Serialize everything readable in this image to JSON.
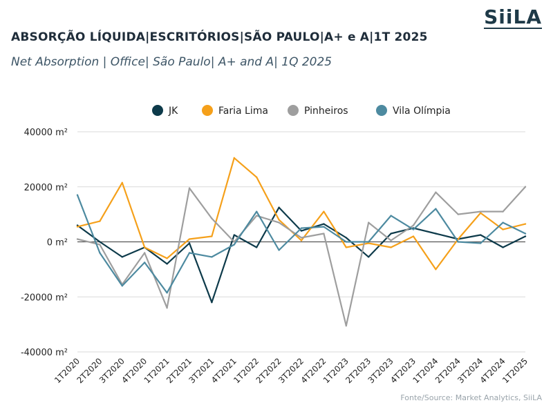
{
  "header": {
    "title": "ABSORÇÃO LÍQUIDA|ESCRITÓRIOS|SÃO PAULO|A+ e A|1T 2025",
    "subtitle": "Net Absorption | Office| São Paulo| A+ and A| 1Q 2025",
    "logo_text": "SiiLA"
  },
  "footer": {
    "source": "Fonte/Source: Market Analytics, SiiLA"
  },
  "chart_data": {
    "type": "line",
    "title": "ABSORÇÃO LÍQUIDA|ESCRITÓRIOS|SÃO PAULO|A+ e A|1T 2025",
    "subtitle": "Net Absorption | Office| São Paulo| A+ and A| 1Q 2025",
    "xlabel": "",
    "ylabel": "",
    "ylim": [
      -40000,
      40000
    ],
    "y_ticks": [
      40000,
      20000,
      0,
      -20000,
      -40000
    ],
    "y_tick_labels": [
      "40000 m²",
      "20000 m²",
      "0 m²",
      "-20000 m²",
      "-40000 m²"
    ],
    "legend_position": "top",
    "grid": "horizontal",
    "categories": [
      "1T2020",
      "2T2020",
      "3T2020",
      "4T2020",
      "1T2021",
      "2T2021",
      "3T2021",
      "4T2021",
      "1T2022",
      "2T2022",
      "3T2022",
      "4T2022",
      "1T2023",
      "2T2023",
      "3T2023",
      "4T2023",
      "1T2024",
      "2T2024",
      "3T2024",
      "4T2024",
      "1T2025"
    ],
    "series": [
      {
        "name": "JK",
        "color": "#0d3a4a",
        "values": [
          6000,
          0,
          -5500,
          -2000,
          -8000,
          -500,
          -22000,
          2500,
          -2000,
          12500,
          4000,
          6500,
          1500,
          -5500,
          3000,
          5000,
          3000,
          1000,
          2500,
          -2000,
          2000
        ]
      },
      {
        "name": "Faria Lima",
        "color": "#f5a01a",
        "values": [
          5500,
          7500,
          21500,
          -2000,
          -6000,
          1000,
          2000,
          30500,
          23500,
          8000,
          500,
          11000,
          -2000,
          -500,
          -2000,
          2000,
          -10000,
          1000,
          10500,
          4500,
          6500
        ]
      },
      {
        "name": "Pinheiros",
        "color": "#9e9e9e",
        "values": [
          1000,
          -1000,
          -15500,
          -4000,
          -24000,
          19500,
          8500,
          0,
          9500,
          7000,
          1500,
          3000,
          -30500,
          7000,
          500,
          6000,
          18000,
          10000,
          11000,
          11000,
          20000
        ]
      },
      {
        "name": "Vila Olímpia",
        "color": "#4d8aa0",
        "values": [
          17000,
          -4000,
          -16000,
          -7500,
          -18500,
          -4000,
          -5500,
          -1000,
          11000,
          -3000,
          5000,
          5500,
          0,
          0,
          9500,
          4500,
          12000,
          0,
          -500,
          7000,
          3000
        ]
      }
    ]
  }
}
